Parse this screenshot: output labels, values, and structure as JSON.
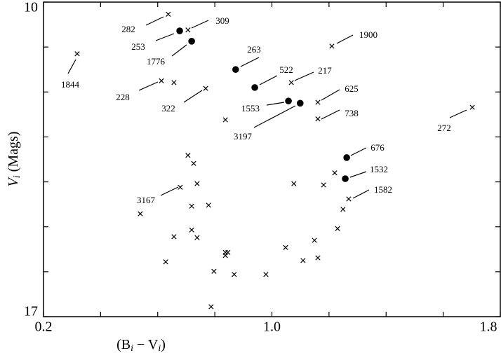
{
  "chart_data": {
    "type": "scatter",
    "xlabel": [
      "(B",
      "i",
      " − V",
      "i",
      ")"
    ],
    "ylabel": [
      "V",
      "i",
      " (Mags)"
    ],
    "xlim": [
      0.2,
      1.8
    ],
    "xticks": [
      0.2,
      {
        "value": 1,
        "label": "1.0"
      },
      1.8
    ],
    "xminorticks": [
      0.4,
      0.6,
      0.8,
      1.2,
      1.4,
      1.6
    ],
    "ylim": [
      10,
      17
    ],
    "y_inverted": true,
    "yticks": [
      10,
      17
    ],
    "yminorticks": [
      11,
      12,
      13,
      14,
      15,
      16
    ],
    "series": [
      {
        "marker": "x",
        "color": "#000000",
        "x": [
          0.318,
          0.637,
          0.706,
          1.21,
          0.613,
          0.657,
          0.768,
          1.068,
          1.161,
          1.161,
          0.837,
          1.702,
          0.706,
          0.726,
          0.679,
          0.738,
          0.539,
          0.719,
          0.778,
          0.657,
          0.719,
          0.738,
          0.628,
          0.837,
          0.846,
          0.837,
          0.797,
          0.868,
          0.979,
          0.787,
          1.077,
          1.181,
          1.22,
          1.269,
          1.249,
          1.23,
          1.149,
          1.048,
          1.109,
          1.161
        ],
        "values": [
          11.15,
          10.27,
          10.62,
          10.98,
          11.75,
          11.79,
          11.92,
          11.79,
          12.23,
          12.6,
          12.62,
          12.34,
          13.41,
          13.59,
          14.12,
          14.04,
          14.71,
          14.54,
          14.52,
          15.22,
          15.07,
          15.24,
          15.78,
          15.57,
          15.57,
          15.64,
          15.99,
          16.06,
          16.06,
          16.78,
          14.04,
          14.07,
          13.8,
          14.38,
          14.61,
          15.04,
          15.3,
          15.46,
          15.75,
          15.69
        ],
        "labels": [
          "1844",
          "282",
          "309",
          "1900",
          "228",
          null,
          "322",
          "217",
          "625",
          "738",
          null,
          "272",
          null,
          null,
          "3167",
          null,
          null,
          null,
          null,
          null,
          null,
          null,
          null,
          null,
          null,
          null,
          null,
          null,
          null,
          null,
          null,
          null,
          null,
          "1582",
          null,
          null,
          null,
          null,
          null,
          null
        ]
      },
      {
        "marker": "o",
        "color": "#000000",
        "x": [
          0.677,
          0.719,
          0.873,
          0.94,
          1.058,
          1.099,
          1.262,
          1.257
        ],
        "values": [
          10.64,
          10.87,
          11.5,
          11.9,
          12.2,
          12.25,
          13.46,
          13.93
        ],
        "labels": [
          "253",
          "1776",
          "263",
          "522",
          "1553",
          "3197",
          "676",
          "1532"
        ]
      }
    ]
  }
}
